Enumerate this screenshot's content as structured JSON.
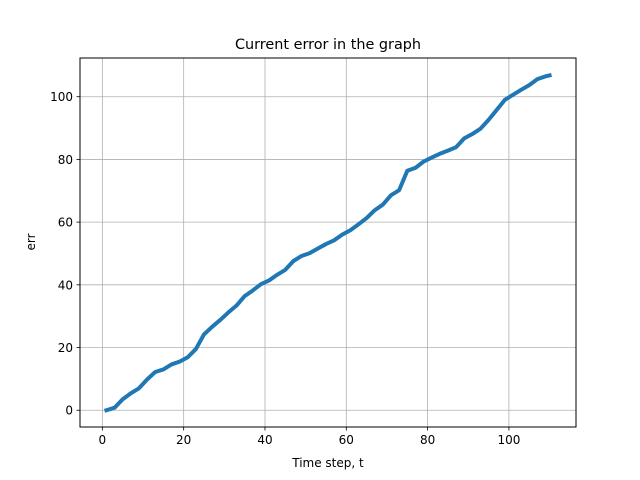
{
  "chart_data": {
    "type": "line",
    "title": "Current error in the graph",
    "xlabel": "Time step, t",
    "ylabel": "err",
    "xlim": [
      -5.5,
      116.5
    ],
    "ylim": [
      -5.35,
      112.35
    ],
    "xticks": [
      0,
      20,
      40,
      60,
      80,
      100
    ],
    "yticks": [
      0,
      20,
      40,
      60,
      80,
      100
    ],
    "grid": true,
    "legend": "none",
    "series": [
      {
        "color": "#1f77b4",
        "x": [
          1,
          3,
          5,
          7,
          9,
          11,
          13,
          15,
          17,
          19,
          21,
          23,
          25,
          27,
          29,
          31,
          33,
          35,
          37,
          39,
          41,
          43,
          45,
          47,
          49,
          51,
          53,
          55,
          57,
          59,
          61,
          63,
          65,
          67,
          69,
          71,
          73,
          75,
          77,
          79,
          81,
          83,
          85,
          87,
          89,
          91,
          93,
          95,
          97,
          99,
          101,
          103,
          105,
          107,
          109,
          110
        ],
        "y": [
          0,
          0.8,
          3.5,
          5.4,
          7,
          9.8,
          12.2,
          13,
          14.6,
          15.5,
          16.9,
          19.5,
          24.2,
          26.6,
          28.8,
          31.2,
          33.4,
          36.4,
          38.2,
          40.2,
          41.4,
          43.2,
          44.8,
          47.6,
          49.2,
          50.1,
          51.6,
          53,
          54.2,
          56,
          57.4,
          59.3,
          61.3,
          63.8,
          65.6,
          68.6,
          70.2,
          76.4,
          77.3,
          79.3,
          80.6,
          81.8,
          82.8,
          83.9,
          86.7,
          88.1,
          89.8,
          92.6,
          95.8,
          99,
          100.6,
          102.2,
          103.7,
          105.6,
          106.5,
          106.8
        ]
      }
    ]
  }
}
